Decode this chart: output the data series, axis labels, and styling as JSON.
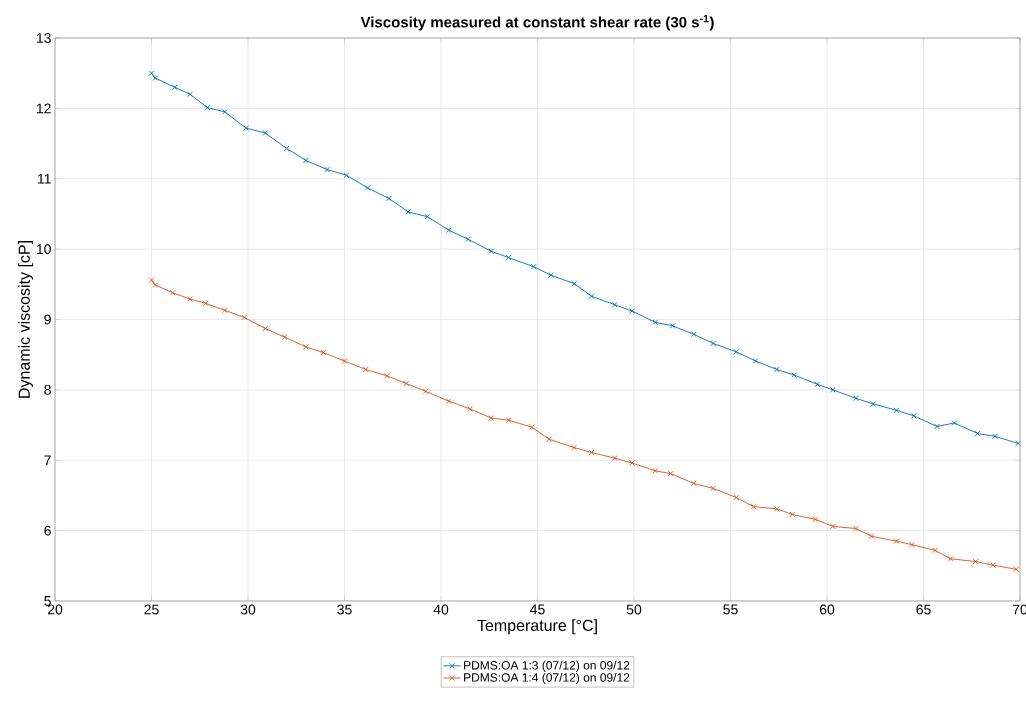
{
  "chart_data": {
    "type": "line",
    "title": "Viscosity measured at constant shear rate (30 s$^{-1}$)",
    "xlabel": "Temperature [°C]",
    "ylabel": "Dynamic viscosity [cP]",
    "xlim": [
      20,
      70
    ],
    "ylim": [
      5,
      13
    ],
    "xticks": [
      20,
      25,
      30,
      35,
      40,
      45,
      50,
      55,
      60,
      65,
      70
    ],
    "yticks": [
      5,
      6,
      7,
      8,
      9,
      10,
      11,
      12,
      13
    ],
    "grid": true,
    "legend": "bottom",
    "marker": "cross",
    "line_style": "solid",
    "series": [
      {
        "name": "PDMS:OA 1:3 (07/12) on 09/12",
        "color": "#0072bd",
        "x": [
          25,
          25.2,
          26.2,
          27,
          27.9,
          28.8,
          29.9,
          30.9,
          32,
          33,
          34.1,
          35.1,
          36.2,
          37.3,
          38.3,
          39.3,
          40.4,
          41.4,
          42.6,
          43.5,
          44.8,
          45.7,
          46.9,
          47.8,
          49,
          49.9,
          51.1,
          52,
          53.1,
          54.1,
          55.3,
          56.3,
          57.4,
          58.3,
          59.5,
          60.3,
          61.5,
          62.4,
          63.6,
          64.5,
          65.7,
          66.6,
          67.8,
          68.7,
          69.9
        ],
        "values": [
          12.5,
          12.43,
          12.3,
          12.2,
          12.01,
          11.95,
          11.72,
          11.65,
          11.43,
          11.26,
          11.13,
          11.05,
          10.87,
          10.72,
          10.53,
          10.46,
          10.27,
          10.14,
          9.97,
          9.88,
          9.75,
          9.63,
          9.51,
          9.33,
          9.21,
          9.12,
          8.96,
          8.91,
          8.79,
          8.66,
          8.54,
          8.41,
          8.29,
          8.21,
          8.08,
          8,
          7.88,
          7.8,
          7.71,
          7.63,
          7.48,
          7.53,
          7.38,
          7.34,
          7.24
        ]
      },
      {
        "name": "PDMS:OA 1:4 (07/12) on 09/12",
        "color": "#d95319",
        "x": [
          25,
          25.2,
          26.1,
          27,
          27.8,
          28.8,
          29.8,
          30.9,
          31.9,
          33,
          33.9,
          35,
          36.1,
          37.2,
          38.2,
          39.2,
          40.4,
          41.5,
          42.6,
          43.5,
          44.7,
          45.6,
          46.9,
          47.8,
          49,
          49.9,
          51.1,
          51.9,
          53.1,
          54.1,
          55.3,
          56.2,
          57.4,
          58.2,
          59.4,
          60.3,
          61.5,
          62.3,
          63.6,
          64.4,
          65.6,
          66.4,
          67.7,
          68.6,
          69.8
        ],
        "values": [
          9.56,
          9.49,
          9.38,
          9.29,
          9.23,
          9.13,
          9.03,
          8.87,
          8.75,
          8.61,
          8.53,
          8.41,
          8.29,
          8.2,
          8.09,
          7.98,
          7.84,
          7.73,
          7.6,
          7.57,
          7.47,
          7.3,
          7.18,
          7.11,
          7.03,
          6.96,
          6.85,
          6.81,
          6.67,
          6.6,
          6.47,
          6.34,
          6.31,
          6.23,
          6.16,
          6.06,
          6.03,
          5.92,
          5.85,
          5.8,
          5.72,
          5.6,
          5.56,
          5.51,
          5.45
        ]
      }
    ]
  }
}
